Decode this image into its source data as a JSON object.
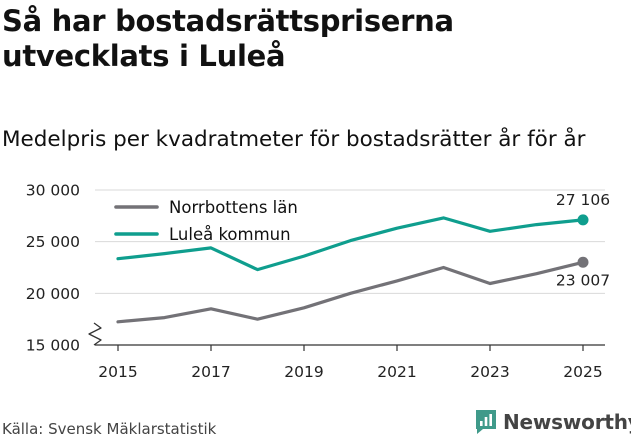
{
  "header": {
    "title": "Så har bostadsrättspriserna utvecklats i Luleå",
    "subtitle": "Medelpris per kvadratmeter för bostadsrätter år för år"
  },
  "footer": {
    "source": "Källa: Svensk Mäklarstatistik",
    "brand": "Newsworthy"
  },
  "colors": {
    "norrbotten": "#737277",
    "lulea": "#0f9e8e",
    "grid": "#d9d9d9",
    "axis": "#333333",
    "brand_icon": "#3f9a8a"
  },
  "chart_data": {
    "type": "line",
    "title": "Medelpris per kvadratmeter för bostadsrätter år för år",
    "xlabel": "",
    "ylabel": "",
    "x": [
      2015,
      2016,
      2017,
      2018,
      2019,
      2020,
      2021,
      2022,
      2023,
      2024,
      2025
    ],
    "xticks": [
      "2015",
      "2017",
      "2019",
      "2021",
      "2023",
      "2025"
    ],
    "ylim": [
      15000,
      30000
    ],
    "yticks": [
      15000,
      20000,
      25000,
      30000
    ],
    "ytick_labels": [
      "15 000",
      "20 000",
      "25 000",
      "30 000"
    ],
    "grid": true,
    "legend_position": "top-left",
    "series": [
      {
        "name": "Norrbottens län",
        "color_key": "norrbotten",
        "values": [
          17250,
          17650,
          18500,
          17500,
          18600,
          20000,
          21200,
          22500,
          20950,
          21900,
          23007
        ],
        "end_label": "23 007",
        "end_label_position": "below"
      },
      {
        "name": "Luleå kommun",
        "color_key": "lulea",
        "values": [
          23350,
          23850,
          24400,
          22300,
          23600,
          25100,
          26300,
          27300,
          26000,
          26650,
          27106
        ],
        "end_label": "27 106",
        "end_label_position": "above"
      }
    ]
  }
}
